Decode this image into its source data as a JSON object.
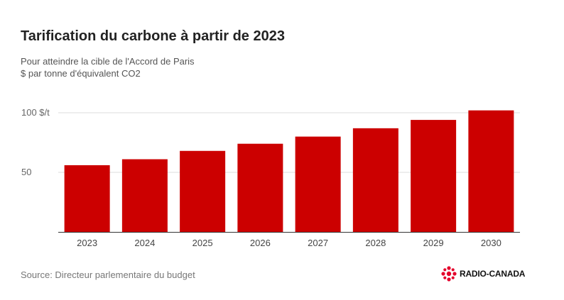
{
  "header": {
    "title": "Tarification du carbone à partir de 2023",
    "subtitle_line1": "Pour atteindre la cible de l'Accord de Paris",
    "subtitle_line2": "$ par tonne d'équivalent CO2"
  },
  "footer": {
    "source": "Source: Directeur parlementaire du budget",
    "logo_text": "RADIO-CANADA",
    "logo_icon": "radio-canada-gem-icon"
  },
  "colors": {
    "bar": "#cc0000",
    "grid": "#dddddd",
    "axis": "#333333",
    "logo": "#e4002b"
  },
  "chart_data": {
    "type": "bar",
    "categories": [
      "2023",
      "2024",
      "2025",
      "2026",
      "2027",
      "2028",
      "2029",
      "2030"
    ],
    "values": [
      56,
      61,
      68,
      74,
      80,
      87,
      94,
      102
    ],
    "ylim": [
      0,
      110
    ],
    "yticks": [
      {
        "value": 50,
        "label": "50"
      },
      {
        "value": 100,
        "label": "100 $/t"
      }
    ],
    "grid": true,
    "legend": "none"
  }
}
